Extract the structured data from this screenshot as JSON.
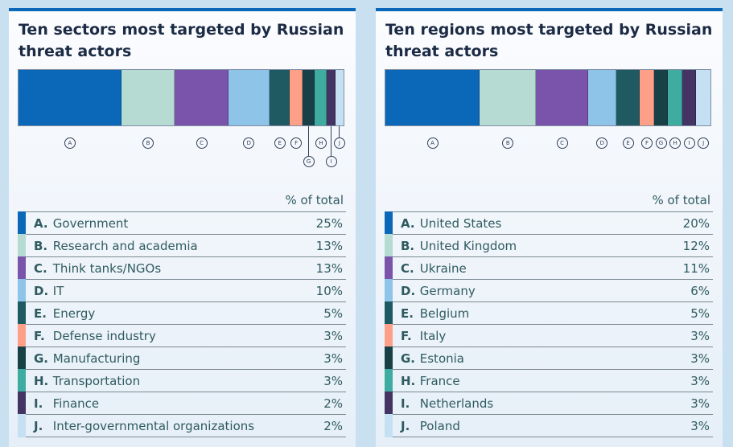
{
  "chart_data": [
    {
      "type": "bar",
      "subtype": "stacked-100-horizontal",
      "title": "Ten sectors most targeted by Russian threat actors",
      "column_header": "% of total",
      "categories": [
        {
          "letter": "A",
          "name": "Government",
          "value": 25,
          "pct": "25%",
          "color": "#0b67b8"
        },
        {
          "letter": "B",
          "name": "Research and academia",
          "value": 13,
          "pct": "13%",
          "color": "#b5dbd2"
        },
        {
          "letter": "C",
          "name": "Think tanks/NGOs",
          "value": 13,
          "pct": "13%",
          "color": "#7954aa"
        },
        {
          "letter": "D",
          "name": "IT",
          "value": 10,
          "pct": "10%",
          "color": "#8ec4e8"
        },
        {
          "letter": "E",
          "name": "Energy",
          "value": 5,
          "pct": "5%",
          "color": "#1f5961"
        },
        {
          "letter": "F",
          "name": "Defense industry",
          "value": 3,
          "pct": "3%",
          "color": "#fea088"
        },
        {
          "letter": "G",
          "name": "Manufacturing",
          "value": 3,
          "pct": "3%",
          "color": "#184147"
        },
        {
          "letter": "H",
          "name": "Transportation",
          "value": 3,
          "pct": "3%",
          "color": "#3eaca0"
        },
        {
          "letter": "I",
          "name": "Finance",
          "value": 2,
          "pct": "2%",
          "color": "#433464"
        },
        {
          "letter": "J",
          "name": "Inter-governmental organizations",
          "value": 2,
          "pct": "2%",
          "color": "#c6e0f3"
        }
      ],
      "offset_labels": [
        "G",
        "I"
      ]
    },
    {
      "type": "bar",
      "subtype": "stacked-100-horizontal",
      "title": "Ten regions most targeted by Russian threat actors",
      "column_header": "% of total",
      "categories": [
        {
          "letter": "A",
          "name": "United States",
          "value": 20,
          "pct": "20%",
          "color": "#0b67b8"
        },
        {
          "letter": "B",
          "name": "United Kingdom",
          "value": 12,
          "pct": "12%",
          "color": "#b5dbd2"
        },
        {
          "letter": "C",
          "name": "Ukraine",
          "value": 11,
          "pct": "11%",
          "color": "#7954aa"
        },
        {
          "letter": "D",
          "name": "Germany",
          "value": 6,
          "pct": "6%",
          "color": "#8ec4e8"
        },
        {
          "letter": "E",
          "name": "Belgium",
          "value": 5,
          "pct": "5%",
          "color": "#1f5961"
        },
        {
          "letter": "F",
          "name": "Italy",
          "value": 3,
          "pct": "3%",
          "color": "#fea088"
        },
        {
          "letter": "G",
          "name": "Estonia",
          "value": 3,
          "pct": "3%",
          "color": "#184147"
        },
        {
          "letter": "H",
          "name": "France",
          "value": 3,
          "pct": "3%",
          "color": "#3eaca0"
        },
        {
          "letter": "I",
          "name": "Netherlands",
          "value": 3,
          "pct": "3%",
          "color": "#433464"
        },
        {
          "letter": "J",
          "name": "Poland",
          "value": 3,
          "pct": "3%",
          "color": "#c6e0f3"
        }
      ],
      "offset_labels": []
    }
  ]
}
